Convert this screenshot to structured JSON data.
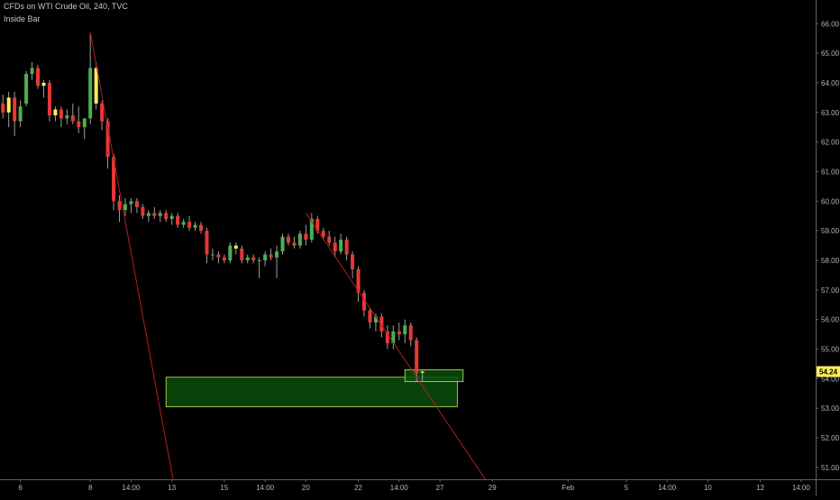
{
  "header": {
    "title": "CFDs on WTI Crude Oil, 240, TVC",
    "indicator": "Inside Bar"
  },
  "chart_data": {
    "type": "candlestick",
    "y_axis": {
      "position": "right",
      "range": [
        50.6,
        66.8
      ],
      "ticks": [
        "51.00",
        "52.00",
        "53.00",
        "54.00",
        "55.00",
        "56.00",
        "57.00",
        "58.00",
        "59.00",
        "60.00",
        "61.00",
        "62.00",
        "63.00",
        "64.00",
        "65.00",
        "66.00"
      ]
    },
    "x_axis": {
      "ticks": [
        {
          "label": "6",
          "x": 0
        },
        {
          "label": "8",
          "x": 12
        },
        {
          "label": "14:00",
          "x": 19
        },
        {
          "label": "13",
          "x": 26
        },
        {
          "label": "15",
          "x": 35
        },
        {
          "label": "14:00",
          "x": 42
        },
        {
          "label": "20",
          "x": 49
        },
        {
          "label": "22",
          "x": 58
        },
        {
          "label": "14:00",
          "x": 65
        },
        {
          "label": "27",
          "x": 72
        },
        {
          "label": "29",
          "x": 81
        },
        {
          "label": "Feb",
          "x": 94
        },
        {
          "label": "5",
          "x": 104
        },
        {
          "label": "14:00",
          "x": 111
        },
        {
          "label": "10",
          "x": 118
        },
        {
          "label": "12",
          "x": 127
        },
        {
          "label": "14:00",
          "x": 134
        }
      ]
    },
    "x_range": [
      -3.5,
      136.5
    ],
    "price_label": {
      "value": "54.24",
      "price": 54.24
    },
    "colors": {
      "up": "#4caf50",
      "down": "#e53935",
      "inside": "#ffee58",
      "wick": "#9e9e9e",
      "trendline": "#b71c1c",
      "zone_fill": "#0b4d0b",
      "zone_stroke": "#c8e65a",
      "label_bg": "#ffee58"
    },
    "candles": [
      {
        "x": -3,
        "o": 63.3,
        "h": 63.6,
        "l": 62.8,
        "c": 63.0
      },
      {
        "x": -2,
        "o": 63.0,
        "h": 63.7,
        "l": 62.5,
        "c": 63.5,
        "s": "i"
      },
      {
        "x": -1,
        "o": 63.5,
        "h": 63.7,
        "l": 62.2,
        "c": 62.7
      },
      {
        "x": 0,
        "o": 62.7,
        "h": 63.4,
        "l": 62.5,
        "c": 63.2
      },
      {
        "x": 1,
        "o": 63.3,
        "h": 64.4,
        "l": 63.2,
        "c": 64.3
      },
      {
        "x": 2,
        "o": 64.3,
        "h": 64.7,
        "l": 64.1,
        "c": 64.5
      },
      {
        "x": 3,
        "o": 64.5,
        "h": 64.6,
        "l": 63.8,
        "c": 63.9
      },
      {
        "x": 4,
        "o": 63.9,
        "h": 64.1,
        "l": 63.5,
        "c": 64.0,
        "s": "i"
      },
      {
        "x": 5,
        "o": 64.0,
        "h": 64.1,
        "l": 62.7,
        "c": 62.9
      },
      {
        "x": 6,
        "o": 62.9,
        "h": 63.2,
        "l": 62.7,
        "c": 63.1,
        "s": "i"
      },
      {
        "x": 7,
        "o": 63.1,
        "h": 63.2,
        "l": 62.5,
        "c": 62.8
      },
      {
        "x": 8,
        "o": 62.8,
        "h": 63.1,
        "l": 62.6,
        "c": 62.9
      },
      {
        "x": 9,
        "o": 62.9,
        "h": 63.3,
        "l": 62.6,
        "c": 62.7
      },
      {
        "x": 10,
        "o": 62.7,
        "h": 63.2,
        "l": 62.3,
        "c": 62.5
      },
      {
        "x": 11,
        "o": 62.5,
        "h": 62.8,
        "l": 62.1,
        "c": 62.8
      },
      {
        "x": 12,
        "o": 62.8,
        "h": 65.7,
        "l": 62.6,
        "c": 64.5
      },
      {
        "x": 13,
        "o": 64.5,
        "h": 64.7,
        "l": 63.1,
        "c": 63.3,
        "s": "i"
      },
      {
        "x": 14,
        "o": 63.3,
        "h": 63.4,
        "l": 62.4,
        "c": 62.7
      },
      {
        "x": 15,
        "o": 62.7,
        "h": 62.8,
        "l": 61.1,
        "c": 61.5
      },
      {
        "x": 16,
        "o": 61.5,
        "h": 61.6,
        "l": 59.7,
        "c": 60.0
      },
      {
        "x": 17,
        "o": 60.0,
        "h": 60.2,
        "l": 59.3,
        "c": 59.7
      },
      {
        "x": 18,
        "o": 59.7,
        "h": 60.1,
        "l": 59.5,
        "c": 59.9
      },
      {
        "x": 19,
        "o": 59.9,
        "h": 60.1,
        "l": 59.6,
        "c": 60.0
      },
      {
        "x": 20,
        "o": 60.0,
        "h": 60.1,
        "l": 59.6,
        "c": 59.8
      },
      {
        "x": 21,
        "o": 59.8,
        "h": 59.9,
        "l": 59.4,
        "c": 59.5
      },
      {
        "x": 22,
        "o": 59.5,
        "h": 59.7,
        "l": 59.3,
        "c": 59.6
      },
      {
        "x": 23,
        "o": 59.6,
        "h": 59.8,
        "l": 59.4,
        "c": 59.5
      },
      {
        "x": 24,
        "o": 59.5,
        "h": 59.7,
        "l": 59.3,
        "c": 59.6
      },
      {
        "x": 25,
        "o": 59.6,
        "h": 59.7,
        "l": 59.3,
        "c": 59.4
      },
      {
        "x": 26,
        "o": 59.4,
        "h": 59.6,
        "l": 59.2,
        "c": 59.5
      },
      {
        "x": 27,
        "o": 59.5,
        "h": 59.6,
        "l": 59.1,
        "c": 59.2
      },
      {
        "x": 28,
        "o": 59.2,
        "h": 59.4,
        "l": 59.1,
        "c": 59.3
      },
      {
        "x": 29,
        "o": 59.3,
        "h": 59.5,
        "l": 59.0,
        "c": 59.1
      },
      {
        "x": 30,
        "o": 59.1,
        "h": 59.3,
        "l": 59.0,
        "c": 59.2
      },
      {
        "x": 31,
        "o": 59.2,
        "h": 59.3,
        "l": 58.9,
        "c": 59.0
      },
      {
        "x": 32,
        "o": 59.0,
        "h": 59.1,
        "l": 57.9,
        "c": 58.2
      },
      {
        "x": 33,
        "o": 58.2,
        "h": 58.4,
        "l": 58.0,
        "c": 58.2
      },
      {
        "x": 34,
        "o": 58.2,
        "h": 58.3,
        "l": 57.9,
        "c": 58.1
      },
      {
        "x": 35,
        "o": 58.1,
        "h": 58.2,
        "l": 57.9,
        "c": 58.0
      },
      {
        "x": 36,
        "o": 58.0,
        "h": 58.6,
        "l": 57.9,
        "c": 58.5
      },
      {
        "x": 37,
        "o": 58.5,
        "h": 58.6,
        "l": 58.2,
        "c": 58.4,
        "s": "i"
      },
      {
        "x": 38,
        "o": 58.4,
        "h": 58.5,
        "l": 57.9,
        "c": 58.0
      },
      {
        "x": 39,
        "o": 58.0,
        "h": 58.2,
        "l": 57.9,
        "c": 58.1
      },
      {
        "x": 40,
        "o": 58.1,
        "h": 58.2,
        "l": 57.9,
        "c": 58.0
      },
      {
        "x": 41,
        "o": 58.0,
        "h": 58.1,
        "l": 57.4,
        "c": 58.0
      },
      {
        "x": 42,
        "o": 58.0,
        "h": 58.3,
        "l": 57.8,
        "c": 58.2
      },
      {
        "x": 43,
        "o": 58.2,
        "h": 58.4,
        "l": 58.0,
        "c": 58.1
      },
      {
        "x": 44,
        "o": 58.1,
        "h": 58.5,
        "l": 57.4,
        "c": 58.3
      },
      {
        "x": 45,
        "o": 58.3,
        "h": 58.9,
        "l": 58.2,
        "c": 58.8
      },
      {
        "x": 46,
        "o": 58.8,
        "h": 58.9,
        "l": 58.5,
        "c": 58.6
      },
      {
        "x": 47,
        "o": 58.6,
        "h": 58.8,
        "l": 58.4,
        "c": 58.5
      },
      {
        "x": 48,
        "o": 58.5,
        "h": 59.0,
        "l": 58.4,
        "c": 58.9
      },
      {
        "x": 49,
        "o": 58.9,
        "h": 59.2,
        "l": 58.5,
        "c": 58.7
      },
      {
        "x": 50,
        "o": 58.7,
        "h": 59.6,
        "l": 58.6,
        "c": 59.4
      },
      {
        "x": 51,
        "o": 59.4,
        "h": 59.5,
        "l": 58.9,
        "c": 59.0
      },
      {
        "x": 52,
        "o": 59.0,
        "h": 59.1,
        "l": 58.7,
        "c": 58.8
      },
      {
        "x": 53,
        "o": 58.8,
        "h": 59.0,
        "l": 58.5,
        "c": 58.6
      },
      {
        "x": 54,
        "o": 58.6,
        "h": 58.8,
        "l": 58.1,
        "c": 58.3
      },
      {
        "x": 55,
        "o": 58.3,
        "h": 58.9,
        "l": 58.2,
        "c": 58.7
      },
      {
        "x": 56,
        "o": 58.7,
        "h": 58.8,
        "l": 58.0,
        "c": 58.2
      },
      {
        "x": 57,
        "o": 58.2,
        "h": 58.3,
        "l": 57.4,
        "c": 57.7
      },
      {
        "x": 58,
        "o": 57.7,
        "h": 57.8,
        "l": 56.6,
        "c": 56.9
      },
      {
        "x": 59,
        "o": 56.9,
        "h": 57.0,
        "l": 56.1,
        "c": 56.3
      },
      {
        "x": 60,
        "o": 56.3,
        "h": 56.4,
        "l": 55.7,
        "c": 55.9
      },
      {
        "x": 61,
        "o": 55.9,
        "h": 56.2,
        "l": 55.6,
        "c": 56.1
      },
      {
        "x": 62,
        "o": 56.1,
        "h": 56.2,
        "l": 55.4,
        "c": 55.6
      },
      {
        "x": 63,
        "o": 55.6,
        "h": 55.8,
        "l": 55.0,
        "c": 55.2
      },
      {
        "x": 64,
        "o": 55.2,
        "h": 55.8,
        "l": 55.0,
        "c": 55.6
      },
      {
        "x": 65,
        "o": 55.6,
        "h": 55.9,
        "l": 55.3,
        "c": 55.5
      },
      {
        "x": 66,
        "o": 55.5,
        "h": 56.0,
        "l": 55.2,
        "c": 55.8
      },
      {
        "x": 67,
        "o": 55.8,
        "h": 55.9,
        "l": 55.1,
        "c": 55.3
      },
      {
        "x": 68,
        "o": 55.3,
        "h": 55.4,
        "l": 53.9,
        "c": 54.2
      },
      {
        "x": 69,
        "o": 54.2,
        "h": 54.3,
        "l": 53.9,
        "c": 54.24,
        "s": "i"
      }
    ],
    "trendlines": [
      {
        "x1": 12,
        "y1": 65.7,
        "x2": 26.2,
        "y2": 50.6
      },
      {
        "x1": 49,
        "y1": 59.6,
        "x2": 79.8,
        "y2": 50.6
      }
    ],
    "zones": [
      {
        "x1": 25,
        "x2": 75,
        "y1": 53.05,
        "y2": 54.05
      },
      {
        "x1": 66,
        "x2": 76,
        "y1": 53.9,
        "y2": 54.3
      }
    ]
  }
}
